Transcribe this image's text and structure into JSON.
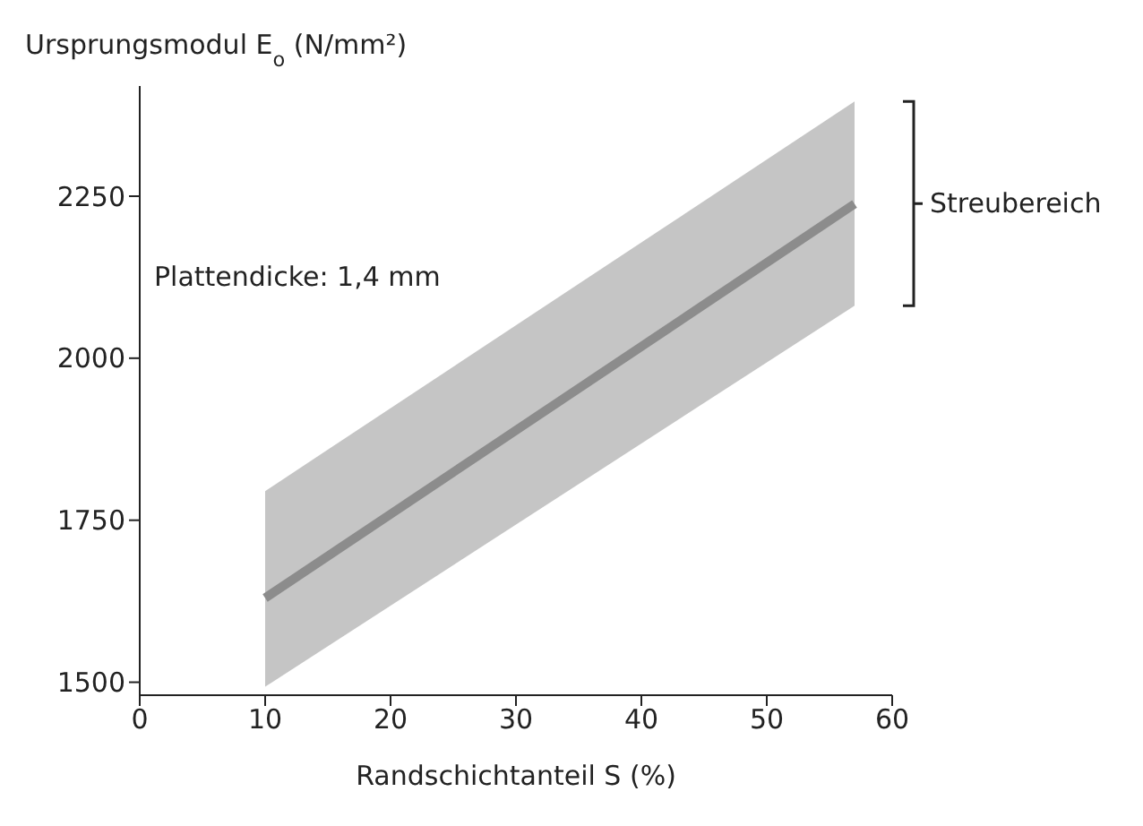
{
  "chart_data": {
    "type": "line",
    "xlabel": "Randschichtanteil S (%)",
    "ylabel": "Ursprungsmodul E$_{o}$ (N/mm²)",
    "x": [
      10,
      57
    ],
    "series": [
      {
        "color": "#8c8c8c",
        "values": [
          1630,
          2238
        ],
        "lower": [
          1493,
          2081
        ],
        "upper": [
          1795,
          2396
        ]
      }
    ],
    "xlim": [
      0,
      60
    ],
    "xticks": [
      0,
      10,
      20,
      30,
      40,
      50,
      60
    ],
    "ylim": [
      1480,
      2420
    ],
    "yticks": [
      1500,
      1750,
      2000,
      2250
    ],
    "annotations": [
      "Plattendicke: 1,4 mm",
      "Streubereich"
    ],
    "grid": false,
    "legend": false,
    "marker": "none",
    "line_style": "solid"
  }
}
